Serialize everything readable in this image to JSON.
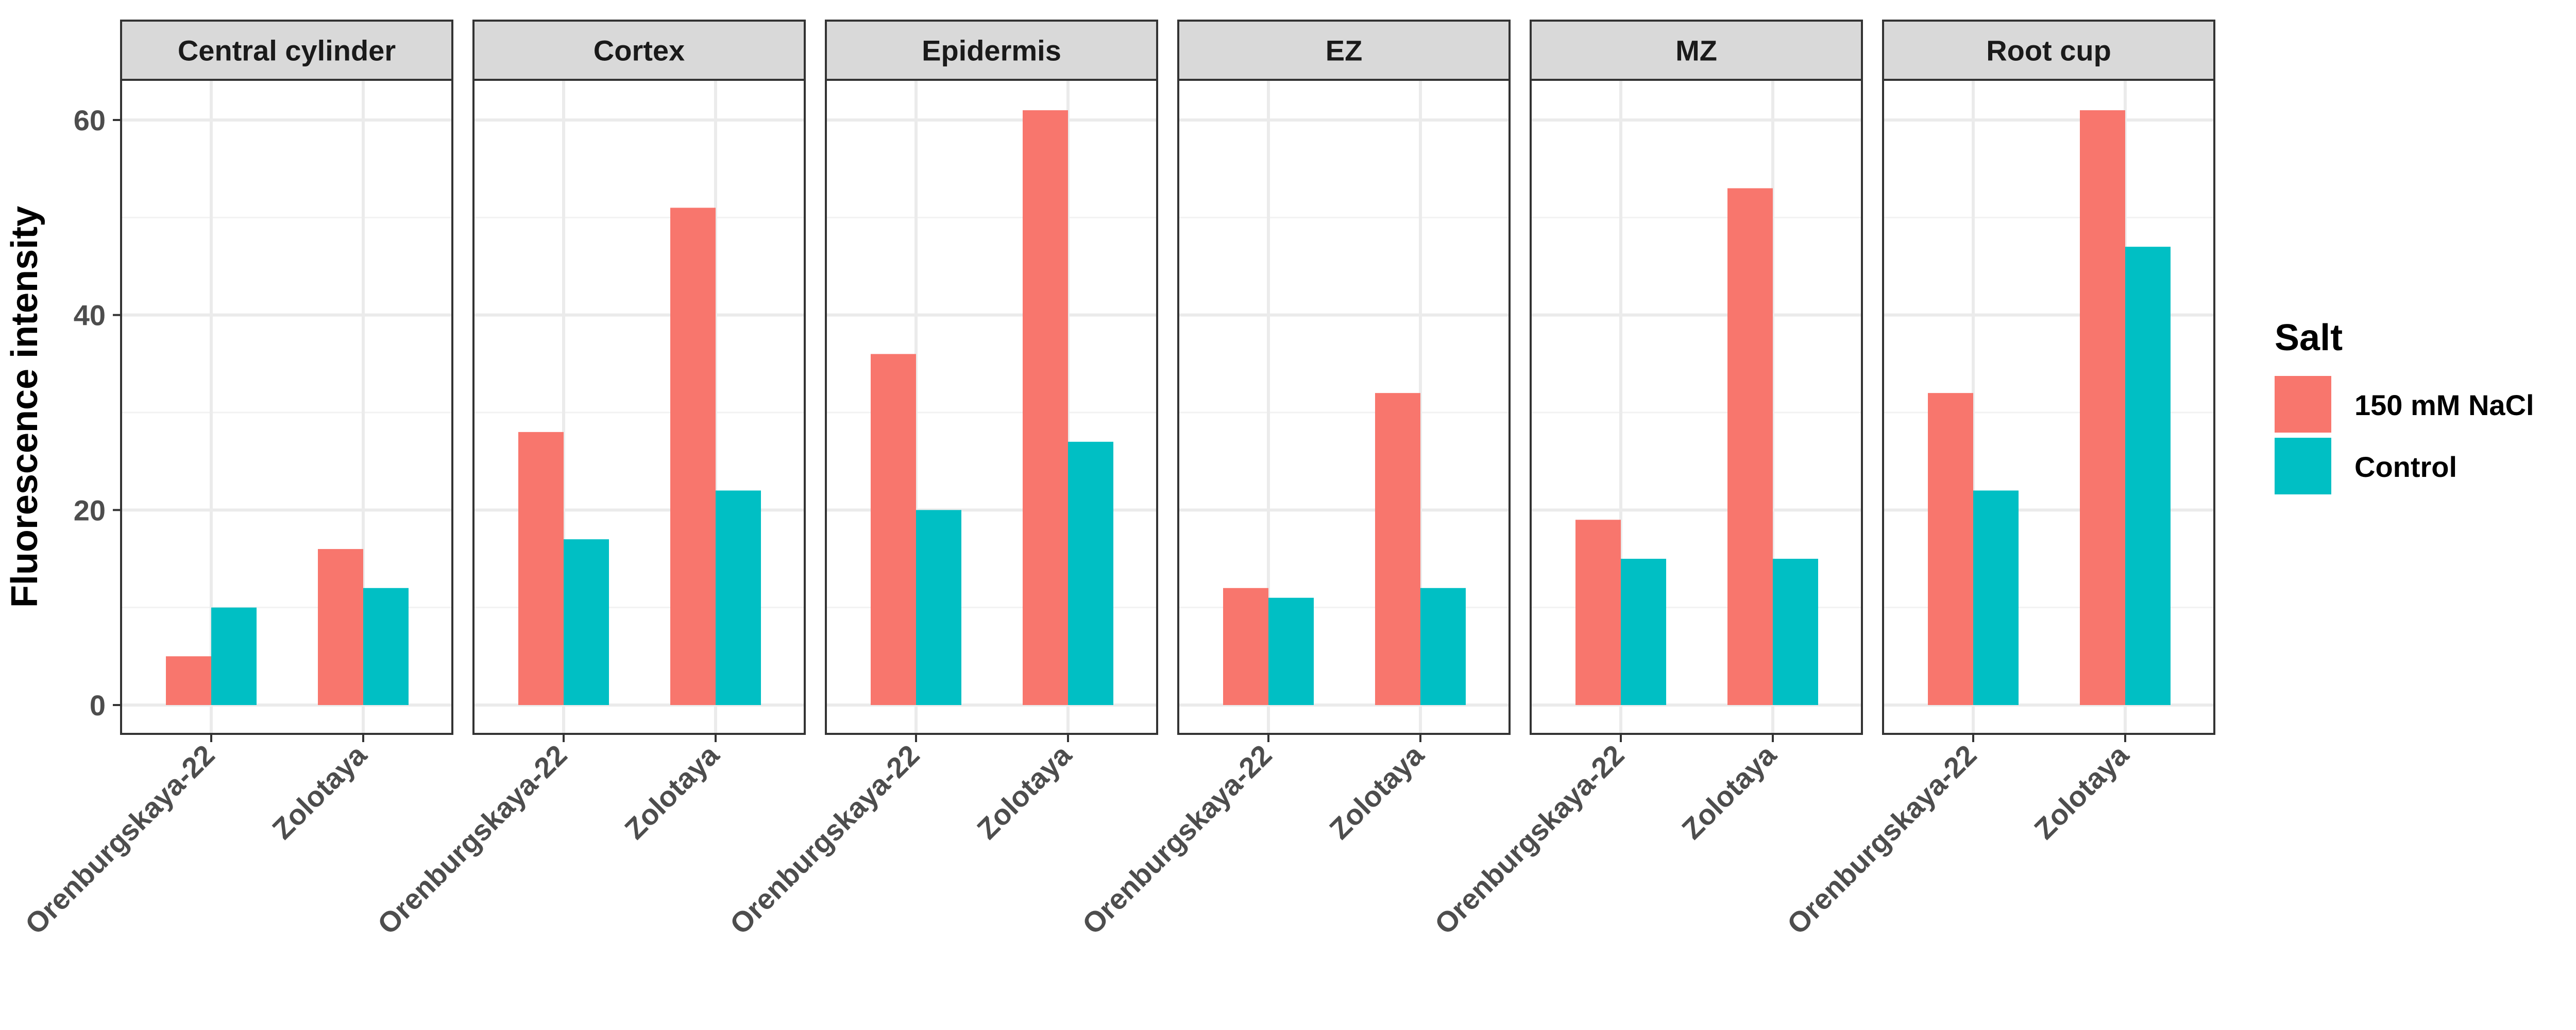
{
  "chart_data": {
    "type": "bar",
    "facet_layout": "single-row",
    "ylabel": "Fluorescence intensity",
    "ylim": [
      0,
      65
    ],
    "y_ticks": [
      0,
      20,
      40,
      60
    ],
    "categories": [
      "Orenburgskaya-22",
      "Zolotaya"
    ],
    "legend": {
      "title": "Salt",
      "position": "right",
      "entries": [
        "150 mM NaCl",
        "Control"
      ]
    },
    "series_colors": {
      "150 mM NaCl": "#F8766D",
      "Control": "#00BFC4"
    },
    "grid": true,
    "panels": [
      {
        "name": "Central cylinder",
        "series": [
          {
            "name": "150 mM NaCl",
            "values": [
              5,
              16
            ]
          },
          {
            "name": "Control",
            "values": [
              10,
              12
            ]
          }
        ]
      },
      {
        "name": "Cortex",
        "series": [
          {
            "name": "150 mM NaCl",
            "values": [
              28,
              51
            ]
          },
          {
            "name": "Control",
            "values": [
              17,
              22
            ]
          }
        ]
      },
      {
        "name": "Epidermis",
        "series": [
          {
            "name": "150 mM NaCl",
            "values": [
              36,
              61
            ]
          },
          {
            "name": "Control",
            "values": [
              20,
              27
            ]
          }
        ]
      },
      {
        "name": "EZ",
        "series": [
          {
            "name": "150 mM NaCl",
            "values": [
              12,
              32
            ]
          },
          {
            "name": "Control",
            "values": [
              11,
              12
            ]
          }
        ]
      },
      {
        "name": "MZ",
        "series": [
          {
            "name": "150 mM NaCl",
            "values": [
              19,
              53
            ]
          },
          {
            "name": "Control",
            "values": [
              15,
              15
            ]
          }
        ]
      },
      {
        "name": "Root cup",
        "series": [
          {
            "name": "150 mM NaCl",
            "values": [
              32,
              61
            ]
          },
          {
            "name": "Control",
            "values": [
              22,
              47
            ]
          }
        ]
      }
    ]
  }
}
